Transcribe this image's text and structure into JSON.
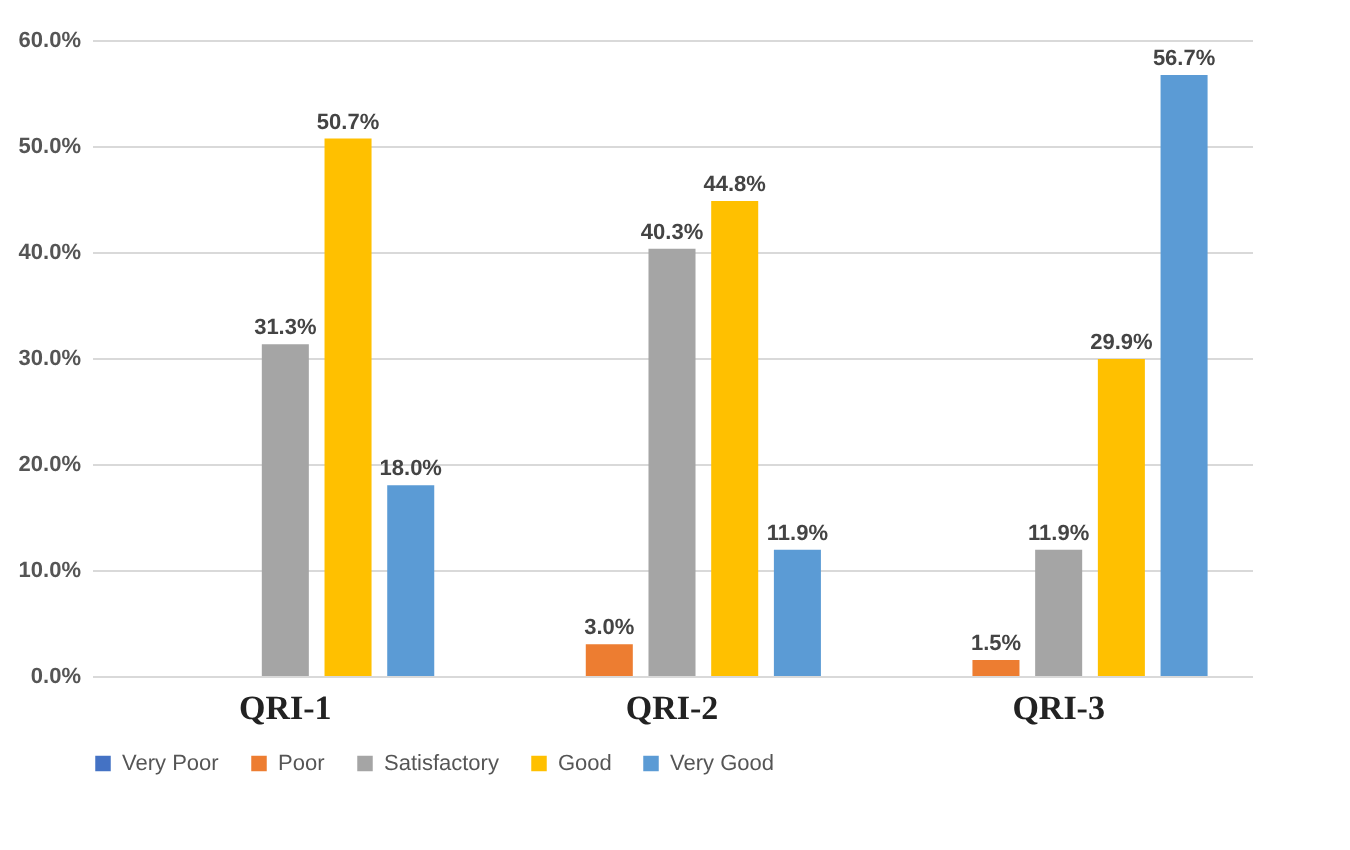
{
  "chart_data": {
    "type": "bar",
    "categories": [
      "QRI-1",
      "QRI-2",
      "QRI-3"
    ],
    "series": [
      {
        "name": "Very Poor",
        "color": "#4472c4",
        "values": [
          0,
          0,
          0
        ],
        "value_labels": [
          null,
          null,
          null
        ]
      },
      {
        "name": "Poor",
        "color": "#ed7d31",
        "values": [
          0,
          3.0,
          1.5
        ],
        "value_labels": [
          null,
          "3.0%",
          "1.5%"
        ]
      },
      {
        "name": "Satisfactory",
        "color": "#a5a5a5",
        "values": [
          31.3,
          40.3,
          11.9
        ],
        "value_labels": [
          "31.3%",
          "40.3%",
          "11.9%"
        ]
      },
      {
        "name": "Good",
        "color": "#ffc000",
        "values": [
          50.7,
          44.8,
          29.9
        ],
        "value_labels": [
          "50.7%",
          "44.8%",
          "29.9%"
        ]
      },
      {
        "name": "Very Good",
        "color": "#5b9bd5",
        "values": [
          18.0,
          11.9,
          56.7
        ],
        "value_labels": [
          "18.0%",
          "11.9%",
          "56.7%"
        ]
      }
    ],
    "ylim": [
      0,
      60
    ],
    "yticks": [
      {
        "value": 0,
        "label": "0.0%"
      },
      {
        "value": 10,
        "label": "10.0%"
      },
      {
        "value": 20,
        "label": "20.0%"
      },
      {
        "value": 30,
        "label": "30.0%"
      },
      {
        "value": 40,
        "label": "40.0%"
      },
      {
        "value": 50,
        "label": "50.0%"
      },
      {
        "value": 60,
        "label": "60.0%"
      }
    ],
    "grid": "y",
    "legend": "bottom"
  }
}
